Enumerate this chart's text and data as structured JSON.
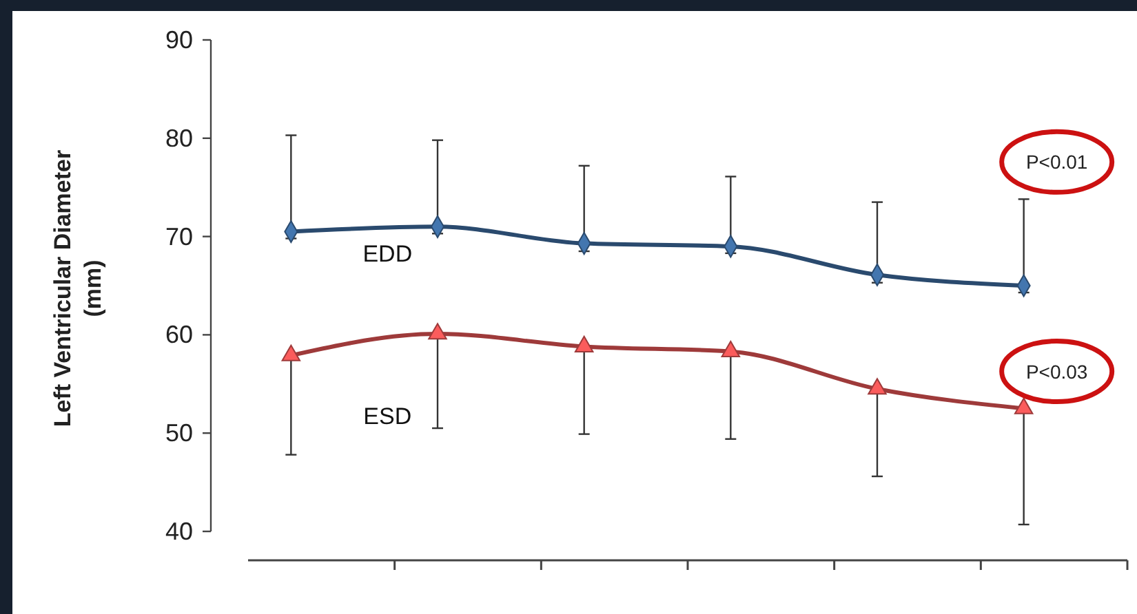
{
  "chart_data": {
    "type": "line",
    "ylabel": "Left Ventricular Diameter (mm)",
    "categories": [
      null,
      null,
      null,
      null,
      null,
      null
    ],
    "ylim": [
      40,
      90
    ],
    "yticks": [
      40,
      50,
      60,
      70,
      80,
      90
    ],
    "grid": false,
    "series": [
      {
        "name": "EDD",
        "color": "#2a4a6e",
        "marker": "diamond",
        "values": [
          70.5,
          71.0,
          69.3,
          69.0,
          66.1,
          65.0
        ],
        "errors": [
          [
            69.8,
            80.3
          ],
          [
            70.3,
            79.8
          ],
          [
            68.5,
            77.2
          ],
          [
            68.3,
            76.1
          ],
          [
            65.3,
            73.5
          ],
          [
            64.3,
            73.8
          ]
        ]
      },
      {
        "name": "ESD",
        "color": "#9e3a3a",
        "marker": "triangle",
        "values": [
          57.9,
          60.1,
          58.8,
          58.3,
          54.5,
          52.5
        ],
        "errors": [
          [
            47.8,
            57.9
          ],
          [
            50.5,
            60.1
          ],
          [
            49.9,
            58.8
          ],
          [
            49.4,
            58.3
          ],
          [
            45.6,
            54.5
          ],
          [
            40.7,
            52.5
          ]
        ]
      }
    ],
    "annotations": [
      "P<0.01",
      "P<0.03"
    ]
  }
}
